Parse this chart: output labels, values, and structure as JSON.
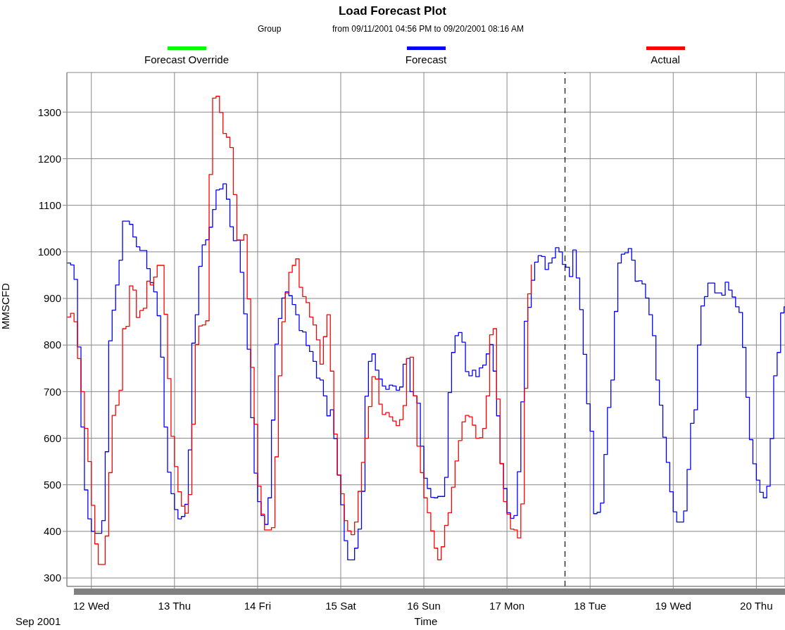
{
  "chart_data": {
    "type": "step",
    "title": "Load Forecast Plot",
    "subtitle": "from 09/11/2001 04:56 PM to 09/20/2001 08:16 AM",
    "xlabel": "Time",
    "ylabel": "MMSCFD",
    "annotations": [
      "Group",
      "Sep 2001"
    ],
    "xlim": [
      "2001-09-11T16:56",
      "2001-09-20T08:16"
    ],
    "xticks": [
      {
        "value": "2001-09-12",
        "label": "12 Wed"
      },
      {
        "value": "2001-09-13",
        "label": "13 Thu"
      },
      {
        "value": "2001-09-14",
        "label": "14 Fri"
      },
      {
        "value": "2001-09-15",
        "label": "15 Sat"
      },
      {
        "value": "2001-09-16",
        "label": "16 Sun"
      },
      {
        "value": "2001-09-17",
        "label": "17 Mon"
      },
      {
        "value": "2001-09-18",
        "label": "18 Tue"
      },
      {
        "value": "2001-09-19",
        "label": "19 Wed"
      },
      {
        "value": "2001-09-20",
        "label": "20 Thu"
      }
    ],
    "ylim": [
      282,
      1385
    ],
    "yticks": [
      300,
      400,
      500,
      600,
      700,
      800,
      900,
      1000,
      1100,
      1200,
      1300
    ],
    "grid": true,
    "legend": "top",
    "ref_lines": [
      {
        "axis": "x",
        "value": "2001-09-17T16:45",
        "color": "#000000",
        "line_style": "dashed"
      }
    ],
    "series": [
      {
        "name": "Forecast Override",
        "color": "#00ff00"
      },
      {
        "name": "Forecast",
        "color": "#0000ff",
        "x": [
          "2001-09-11T16:56",
          "2001-09-11T18:00",
          "2001-09-11T19:00",
          "2001-09-11T20:00",
          "2001-09-11T21:00",
          "2001-09-11T22:00",
          "2001-09-11T23:00",
          "2001-09-12T00:00",
          "2001-09-12T01:00",
          "2001-09-12T03:00",
          "2001-09-12T04:00",
          "2001-09-12T05:00",
          "2001-09-12T06:00",
          "2001-09-12T07:00",
          "2001-09-12T08:00",
          "2001-09-12T09:00",
          "2001-09-12T11:00",
          "2001-09-12T12:00",
          "2001-09-12T13:00",
          "2001-09-12T14:00",
          "2001-09-12T16:00",
          "2001-09-12T17:00",
          "2001-09-12T18:00",
          "2001-09-12T19:00",
          "2001-09-12T20:00",
          "2001-09-12T21:00",
          "2001-09-12T22:00",
          "2001-09-12T23:00",
          "2001-09-13T00:00",
          "2001-09-13T01:00",
          "2001-09-13T02:00",
          "2001-09-13T03:00",
          "2001-09-13T04:00",
          "2001-09-13T05:00",
          "2001-09-13T06:00",
          "2001-09-13T07:00",
          "2001-09-13T08:00",
          "2001-09-13T09:00",
          "2001-09-13T10:00",
          "2001-09-13T11:00",
          "2001-09-13T12:00",
          "2001-09-13T13:00",
          "2001-09-13T14:00",
          "2001-09-13T15:00",
          "2001-09-13T16:00",
          "2001-09-13T17:00",
          "2001-09-13T18:00",
          "2001-09-13T19:00",
          "2001-09-13T20:00",
          "2001-09-13T21:00",
          "2001-09-13T22:00",
          "2001-09-13T23:00",
          "2001-09-14T00:00",
          "2001-09-14T01:00",
          "2001-09-14T02:00",
          "2001-09-14T03:00",
          "2001-09-14T04:00",
          "2001-09-14T05:00",
          "2001-09-14T06:00",
          "2001-09-14T07:00",
          "2001-09-14T08:00",
          "2001-09-14T09:00",
          "2001-09-14T10:00",
          "2001-09-14T11:00",
          "2001-09-14T12:00",
          "2001-09-14T13:00",
          "2001-09-14T14:00",
          "2001-09-14T15:00",
          "2001-09-14T16:00",
          "2001-09-14T17:00",
          "2001-09-14T18:00",
          "2001-09-14T19:00",
          "2001-09-14T20:00",
          "2001-09-14T21:00",
          "2001-09-14T22:00",
          "2001-09-14T23:00",
          "2001-09-15T00:00",
          "2001-09-15T01:00",
          "2001-09-15T02:00",
          "2001-09-15T04:00",
          "2001-09-15T05:00",
          "2001-09-15T06:00",
          "2001-09-15T07:00",
          "2001-09-15T08:00",
          "2001-09-15T09:00",
          "2001-09-15T10:00",
          "2001-09-15T11:00",
          "2001-09-15T12:00",
          "2001-09-15T13:00",
          "2001-09-15T14:00",
          "2001-09-15T15:00",
          "2001-09-15T16:00",
          "2001-09-15T17:00",
          "2001-09-15T18:00",
          "2001-09-15T19:00",
          "2001-09-15T20:00",
          "2001-09-15T21:00",
          "2001-09-15T22:00",
          "2001-09-15T23:00",
          "2001-09-16T00:00",
          "2001-09-16T01:00",
          "2001-09-16T02:00",
          "2001-09-16T03:00",
          "2001-09-16T04:00",
          "2001-09-16T06:00",
          "2001-09-16T07:00",
          "2001-09-16T08:00",
          "2001-09-16T09:00",
          "2001-09-16T10:00",
          "2001-09-16T11:00",
          "2001-09-16T12:00",
          "2001-09-16T13:00",
          "2001-09-16T14:00",
          "2001-09-16T15:00",
          "2001-09-16T16:00",
          "2001-09-16T17:00",
          "2001-09-16T18:00",
          "2001-09-16T19:00",
          "2001-09-16T20:00",
          "2001-09-16T21:00",
          "2001-09-16T22:00",
          "2001-09-16T23:00",
          "2001-09-17T00:00",
          "2001-09-17T01:00",
          "2001-09-17T02:00",
          "2001-09-17T03:00",
          "2001-09-17T04:00",
          "2001-09-17T05:00",
          "2001-09-17T06:00",
          "2001-09-17T07:00",
          "2001-09-17T08:00",
          "2001-09-17T09:00",
          "2001-09-17T10:00",
          "2001-09-17T11:00",
          "2001-09-17T12:00",
          "2001-09-17T13:00",
          "2001-09-17T14:00",
          "2001-09-17T15:00",
          "2001-09-17T16:00",
          "2001-09-17T17:00",
          "2001-09-17T18:00",
          "2001-09-17T19:00",
          "2001-09-17T20:00",
          "2001-09-17T21:00",
          "2001-09-17T22:00",
          "2001-09-17T23:00",
          "2001-09-18T00:00",
          "2001-09-18T01:00",
          "2001-09-18T02:00",
          "2001-09-18T03:00",
          "2001-09-18T04:00",
          "2001-09-18T05:00",
          "2001-09-18T06:00",
          "2001-09-18T07:00",
          "2001-09-18T08:00",
          "2001-09-18T09:00",
          "2001-09-18T10:00",
          "2001-09-18T11:00",
          "2001-09-18T12:00",
          "2001-09-18T13:00",
          "2001-09-18T14:00",
          "2001-09-18T15:00",
          "2001-09-18T16:00",
          "2001-09-18T17:00",
          "2001-09-18T18:00",
          "2001-09-18T19:00",
          "2001-09-18T20:00",
          "2001-09-18T21:00",
          "2001-09-18T22:00",
          "2001-09-18T23:00",
          "2001-09-19T00:00",
          "2001-09-19T01:00",
          "2001-09-19T03:00",
          "2001-09-19T04:00",
          "2001-09-19T05:00",
          "2001-09-19T06:00",
          "2001-09-19T07:00",
          "2001-09-19T08:00",
          "2001-09-19T09:00",
          "2001-09-19T10:00",
          "2001-09-19T12:00",
          "2001-09-19T14:00",
          "2001-09-19T15:00",
          "2001-09-19T16:00",
          "2001-09-19T17:00",
          "2001-09-19T18:00",
          "2001-09-19T19:00",
          "2001-09-19T20:00",
          "2001-09-19T21:00",
          "2001-09-19T22:00",
          "2001-09-19T23:00",
          "2001-09-20T00:00",
          "2001-09-20T01:00",
          "2001-09-20T02:00",
          "2001-09-20T03:00",
          "2001-09-20T04:00",
          "2001-09-20T05:00",
          "2001-09-20T06:00",
          "2001-09-20T07:00",
          "2001-09-20T08:00",
          "2001-09-20T08:16"
        ],
        "values": [
          976,
          972,
          941,
          796,
          624,
          489,
          427,
          400,
          396,
          423,
          571,
          809,
          875,
          929,
          982,
          1066,
          1059,
          1032,
          1011,
          1003,
          964,
          934,
          914,
          863,
          774,
          624,
          527,
          481,
          447,
          427,
          432,
          458,
          575,
          804,
          865,
          969,
          1015,
          1026,
          1053,
          1091,
          1133,
          1135,
          1146,
          1113,
          1054,
          1024,
          1025,
          956,
          867,
          791,
          644,
          525,
          464,
          434,
          415,
          472,
          639,
          802,
          857,
          901,
          914,
          906,
          887,
          865,
          831,
          828,
          799,
          786,
          765,
          729,
          725,
          691,
          648,
          661,
          599,
          521,
          457,
          380,
          339,
          364,
          405,
          486,
          690,
          765,
          781,
          746,
          727,
          712,
          705,
          714,
          712,
          703,
          710,
          759,
          771,
          700,
          691,
          675,
          583,
          514,
          492,
          473,
          472,
          475,
          516,
          698,
          784,
          820,
          827,
          806,
          743,
          734,
          746,
          732,
          751,
          757,
          781,
          801,
          744,
          648,
          545,
          492,
          440,
          428,
          434,
          528,
          678,
          851,
          881,
          939,
          978,
          992,
          990,
          962,
          976,
          987,
          1009,
          1000,
          973,
          967,
          947,
          1004,
          944,
          876,
          780,
          674,
          615,
          438,
          441,
          461,
          565,
          666,
          725,
          872,
          976,
          995,
          998,
          1007,
          982,
          937,
          938,
          931,
          901,
          865,
          820,
          725,
          671,
          602,
          548,
          485,
          442,
          420,
          444,
          533,
          632,
          661,
          800,
          884,
          904,
          933,
          912,
          907,
          935,
          918,
          903,
          882,
          870,
          795,
          688,
          597,
          545,
          510,
          484,
          472,
          497,
          599,
          734,
          784,
          869,
          882,
          882
        ]
      },
      {
        "name": "Actual",
        "color": "#ff0000",
        "x": [
          "2001-09-11T16:56",
          "2001-09-11T18:00",
          "2001-09-11T19:00",
          "2001-09-11T20:00",
          "2001-09-11T21:00",
          "2001-09-11T22:00",
          "2001-09-11T23:00",
          "2001-09-12T00:00",
          "2001-09-12T01:00",
          "2001-09-12T02:00",
          "2001-09-12T04:00",
          "2001-09-12T05:00",
          "2001-09-12T06:00",
          "2001-09-12T07:00",
          "2001-09-12T08:00",
          "2001-09-12T09:00",
          "2001-09-12T10:00",
          "2001-09-12T11:00",
          "2001-09-12T12:00",
          "2001-09-12T13:00",
          "2001-09-12T14:00",
          "2001-09-12T15:00",
          "2001-09-12T16:00",
          "2001-09-12T17:00",
          "2001-09-12T18:00",
          "2001-09-12T19:00",
          "2001-09-12T21:00",
          "2001-09-12T22:00",
          "2001-09-12T23:00",
          "2001-09-13T00:00",
          "2001-09-13T01:00",
          "2001-09-13T02:00",
          "2001-09-13T03:00",
          "2001-09-13T04:00",
          "2001-09-13T05:00",
          "2001-09-13T06:00",
          "2001-09-13T07:00",
          "2001-09-13T08:00",
          "2001-09-13T09:00",
          "2001-09-13T10:00",
          "2001-09-13T11:00",
          "2001-09-13T12:00",
          "2001-09-13T13:00",
          "2001-09-13T14:00",
          "2001-09-13T15:00",
          "2001-09-13T16:00",
          "2001-09-13T17:00",
          "2001-09-13T18:00",
          "2001-09-13T20:00",
          "2001-09-13T21:00",
          "2001-09-13T22:00",
          "2001-09-13T23:00",
          "2001-09-14T00:00",
          "2001-09-14T01:00",
          "2001-09-14T02:00",
          "2001-09-14T04:00",
          "2001-09-14T05:00",
          "2001-09-14T06:00",
          "2001-09-14T07:00",
          "2001-09-14T08:00",
          "2001-09-14T09:00",
          "2001-09-14T10:00",
          "2001-09-14T11:00",
          "2001-09-14T12:00",
          "2001-09-14T13:00",
          "2001-09-14T14:00",
          "2001-09-14T15:00",
          "2001-09-14T16:00",
          "2001-09-14T17:00",
          "2001-09-14T18:00",
          "2001-09-14T19:00",
          "2001-09-14T20:00",
          "2001-09-14T21:00",
          "2001-09-14T22:00",
          "2001-09-14T23:00",
          "2001-09-15T00:00",
          "2001-09-15T01:00",
          "2001-09-15T02:00",
          "2001-09-15T03:00",
          "2001-09-15T04:00",
          "2001-09-15T05:00",
          "2001-09-15T06:00",
          "2001-09-15T07:00",
          "2001-09-15T08:00",
          "2001-09-15T09:00",
          "2001-09-15T10:00",
          "2001-09-15T11:00",
          "2001-09-15T12:00",
          "2001-09-15T13:00",
          "2001-09-15T14:00",
          "2001-09-15T15:00",
          "2001-09-15T16:00",
          "2001-09-15T17:00",
          "2001-09-15T18:00",
          "2001-09-15T19:00",
          "2001-09-15T20:00",
          "2001-09-15T21:00",
          "2001-09-15T22:00",
          "2001-09-15T23:00",
          "2001-09-16T00:00",
          "2001-09-16T01:00",
          "2001-09-16T02:00",
          "2001-09-16T03:00",
          "2001-09-16T04:00",
          "2001-09-16T05:00",
          "2001-09-16T06:00",
          "2001-09-16T07:00",
          "2001-09-16T08:00",
          "2001-09-16T09:00",
          "2001-09-16T10:00",
          "2001-09-16T11:00",
          "2001-09-16T12:00",
          "2001-09-16T13:00",
          "2001-09-16T14:00",
          "2001-09-16T15:00",
          "2001-09-16T16:00",
          "2001-09-16T17:00",
          "2001-09-16T18:00",
          "2001-09-16T19:00",
          "2001-09-16T20:00",
          "2001-09-16T21:00",
          "2001-09-16T22:00",
          "2001-09-16T23:00",
          "2001-09-17T00:00",
          "2001-09-17T01:00",
          "2001-09-17T02:00",
          "2001-09-17T03:00",
          "2001-09-17T04:00",
          "2001-09-17T05:00",
          "2001-09-17T06:00",
          "2001-09-17T07:00"
        ],
        "values": [
          860,
          868,
          850,
          771,
          700,
          621,
          550,
          456,
          373,
          329,
          390,
          526,
          649,
          671,
          703,
          835,
          840,
          927,
          918,
          859,
          874,
          879,
          937,
          929,
          946,
          971,
          866,
          728,
          604,
          539,
          485,
          454,
          439,
          479,
          630,
          801,
          841,
          843,
          852,
          1166,
          1330,
          1334,
          1299,
          1254,
          1246,
          1224,
          1123,
          1025,
          1037,
          899,
          752,
          630,
          497,
          437,
          403,
          408,
          560,
          734,
          850,
          912,
          956,
          971,
          985,
          924,
          904,
          891,
          860,
          843,
          811,
          759,
          818,
          865,
          744,
          609,
          521,
          481,
          423,
          401,
          393,
          420,
          486,
          548,
          600,
          668,
          732,
          727,
          673,
          651,
          655,
          646,
          637,
          627,
          640,
          670,
          771,
          774,
          691,
          583,
          526,
          472,
          440,
          401,
          364,
          339,
          367,
          413,
          440,
          495,
          551,
          595,
          635,
          649,
          646,
          628,
          600,
          601,
          621,
          691,
          822,
          835,
          684,
          546,
          464,
          437,
          405,
          403,
          386,
          459,
          707,
          910,
          973
        ]
      }
    ]
  }
}
